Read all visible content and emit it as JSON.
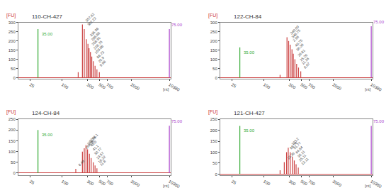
{
  "chart_data": [
    {
      "type": "stem",
      "title": "110-CH-427",
      "x_label": "[nt]",
      "y_label": "[FU]",
      "x": [
        35,
        200,
        240,
        260,
        285,
        305,
        320,
        340,
        360,
        385,
        415,
        450,
        500,
        10380
      ],
      "values": [
        265,
        30,
        290,
        265,
        210,
        185,
        160,
        140,
        115,
        90,
        65,
        45,
        30,
        265
      ],
      "colors": [
        "#33aa33",
        "#cc4444",
        "#cc4444",
        "#cc4444",
        "#cc4444",
        "#cc4444",
        "#cc4444",
        "#cc4444",
        "#cc4444",
        "#cc4444",
        "#cc4444",
        "#cc4444",
        "#cc4444",
        "#aa44cc"
      ],
      "annotations": [
        {
          "x": 35,
          "y": 265,
          "text": "35.00",
          "color": "#33aa33"
        },
        {
          "x": 240,
          "y": 290,
          "text": "357.62",
          "color": "#444444"
        },
        {
          "x": 260,
          "y": 265,
          "text": "382.22",
          "color": "#444444"
        },
        {
          "x": 285,
          "y": 210,
          "text": "335.98",
          "color": "#444444"
        },
        {
          "x": 305,
          "y": 185,
          "text": "288.88",
          "color": "#444444"
        },
        {
          "x": 320,
          "y": 160,
          "text": "258.91",
          "color": "#444444"
        },
        {
          "x": 340,
          "y": 140,
          "text": "228.75",
          "color": "#444444"
        },
        {
          "x": 360,
          "y": 115,
          "text": "159.88",
          "color": "#444444"
        },
        {
          "x": 385,
          "y": 90,
          "text": "88.73",
          "color": "#444444"
        },
        {
          "x": 415,
          "y": 65,
          "text": "25.9",
          "color": "#444444"
        },
        {
          "x": 450,
          "y": 45,
          "text": "9.98",
          "color": "#444444"
        },
        {
          "x": 10380,
          "y": 265,
          "text": "75.00",
          "color": "#aa44cc"
        }
      ],
      "log": "x",
      "xlim": [
        15,
        11000
      ],
      "xticks": [
        25,
        100,
        300,
        500,
        700,
        2000,
        10380
      ],
      "ylim": [
        -5,
        300
      ],
      "yticks": [
        0,
        50,
        100,
        150,
        200,
        250,
        300
      ],
      "grid": false
    },
    {
      "type": "stem",
      "title": "122-CH-84",
      "x_label": "[nt]",
      "y_label": "[FU]",
      "x": [
        35,
        200,
        270,
        290,
        310,
        335,
        355,
        380,
        410,
        445,
        490,
        10380
      ],
      "values": [
        165,
        15,
        220,
        200,
        180,
        155,
        130,
        100,
        75,
        55,
        35,
        280
      ],
      "colors": [
        "#33aa33",
        "#cc4444",
        "#cc4444",
        "#cc4444",
        "#cc4444",
        "#cc4444",
        "#cc4444",
        "#cc4444",
        "#cc4444",
        "#cc4444",
        "#cc4444",
        "#aa44cc"
      ],
      "annotations": [
        {
          "x": 35,
          "y": 165,
          "text": "35.00",
          "color": "#33aa33"
        },
        {
          "x": 270,
          "y": 220,
          "text": "340.09",
          "color": "#444444"
        },
        {
          "x": 290,
          "y": 200,
          "text": "348.75",
          "color": "#444444"
        },
        {
          "x": 310,
          "y": 180,
          "text": "2.96",
          "color": "#444444"
        },
        {
          "x": 335,
          "y": 155,
          "text": "40.75",
          "color": "#444444"
        },
        {
          "x": 355,
          "y": 130,
          "text": "36.36",
          "color": "#444444"
        },
        {
          "x": 380,
          "y": 100,
          "text": "28.81",
          "color": "#444444"
        },
        {
          "x": 410,
          "y": 75,
          "text": "25.26",
          "color": "#444444"
        },
        {
          "x": 445,
          "y": 55,
          "text": "11.26",
          "color": "#444444"
        },
        {
          "x": 490,
          "y": 35,
          "text": "8.07",
          "color": "#444444"
        },
        {
          "x": 10380,
          "y": 280,
          "text": "75.00",
          "color": "#aa44cc"
        }
      ],
      "log": "x",
      "xlim": [
        15,
        11000
      ],
      "xticks": [
        25,
        100,
        300,
        500,
        700,
        2000,
        10380
      ],
      "ylim": [
        -5,
        300
      ],
      "yticks": [
        0,
        50,
        100,
        150,
        200,
        250,
        300
      ],
      "grid": false
    },
    {
      "type": "stem",
      "title": "124-CH-84",
      "x_label": "[nt]",
      "y_label": "[FU]",
      "x": [
        35,
        180,
        240,
        260,
        280,
        300,
        325,
        350,
        385,
        415,
        450,
        10380
      ],
      "values": [
        200,
        20,
        100,
        115,
        130,
        110,
        90,
        70,
        50,
        35,
        22,
        220
      ],
      "colors": [
        "#33aa33",
        "#cc4444",
        "#cc4444",
        "#cc4444",
        "#cc4444",
        "#cc4444",
        "#cc4444",
        "#cc4444",
        "#cc4444",
        "#cc4444",
        "#cc4444",
        "#aa44cc"
      ],
      "annotations": [
        {
          "x": 35,
          "y": 200,
          "text": "35.00",
          "color": "#33aa33"
        },
        {
          "x": 180,
          "y": 20,
          "text": "8.49",
          "color": "#444444"
        },
        {
          "x": 240,
          "y": 100,
          "text": "208.98",
          "color": "#444444"
        },
        {
          "x": 260,
          "y": 115,
          "text": "282.76",
          "color": "#444444"
        },
        {
          "x": 280,
          "y": 130,
          "text": "1268.1",
          "color": "#444444"
        },
        {
          "x": 300,
          "y": 110,
          "text": "48.0",
          "color": "#444444"
        },
        {
          "x": 325,
          "y": 90,
          "text": "41.1",
          "color": "#444444"
        },
        {
          "x": 350,
          "y": 70,
          "text": "30.77",
          "color": "#444444"
        },
        {
          "x": 385,
          "y": 50,
          "text": "19.57",
          "color": "#444444"
        },
        {
          "x": 415,
          "y": 35,
          "text": "18.32",
          "color": "#444444"
        },
        {
          "x": 450,
          "y": 22,
          "text": "11.8",
          "color": "#444444"
        },
        {
          "x": 10380,
          "y": 220,
          "text": "75.00",
          "color": "#aa44cc"
        }
      ],
      "log": "x",
      "xlim": [
        15,
        11000
      ],
      "xticks": [
        25,
        100,
        300,
        500,
        700,
        2000,
        10380
      ],
      "ylim": [
        -10,
        250
      ],
      "yticks": [
        0,
        50,
        100,
        150,
        200,
        250
      ],
      "grid": false
    },
    {
      "type": "stem",
      "title": "121-CH-427",
      "x_label": "[nt]",
      "y_label": "[FU]",
      "x": [
        35,
        200,
        240,
        265,
        285,
        310,
        340,
        370,
        400,
        440,
        10380
      ],
      "values": [
        220,
        18,
        55,
        100,
        120,
        100,
        80,
        62,
        45,
        30,
        220
      ],
      "colors": [
        "#33aa33",
        "#cc4444",
        "#cc4444",
        "#cc4444",
        "#cc4444",
        "#cc4444",
        "#cc4444",
        "#cc4444",
        "#cc4444",
        "#cc4444",
        "#aa44cc"
      ],
      "annotations": [
        {
          "x": 35,
          "y": 220,
          "text": "35.00",
          "color": "#33aa33"
        },
        {
          "x": 240,
          "y": 55,
          "text": "15.36",
          "color": "#444444"
        },
        {
          "x": 265,
          "y": 100,
          "text": "88.76",
          "color": "#444444"
        },
        {
          "x": 285,
          "y": 120,
          "text": "103.2",
          "color": "#444444"
        },
        {
          "x": 310,
          "y": 100,
          "text": "91.77",
          "color": "#444444"
        },
        {
          "x": 340,
          "y": 80,
          "text": "64.84",
          "color": "#444444"
        },
        {
          "x": 370,
          "y": 62,
          "text": "35.11",
          "color": "#444444"
        },
        {
          "x": 400,
          "y": 45,
          "text": "25.11",
          "color": "#444444"
        },
        {
          "x": 440,
          "y": 30,
          "text": "13.11",
          "color": "#444444"
        },
        {
          "x": 10380,
          "y": 220,
          "text": "75.00",
          "color": "#aa44cc"
        }
      ],
      "log": "x",
      "xlim": [
        15,
        11000
      ],
      "xticks": [
        25,
        100,
        300,
        500,
        700,
        2000,
        10380
      ],
      "ylim": [
        -5,
        250
      ],
      "yticks": [
        0,
        50,
        100,
        150,
        200,
        250
      ],
      "grid": false
    }
  ]
}
